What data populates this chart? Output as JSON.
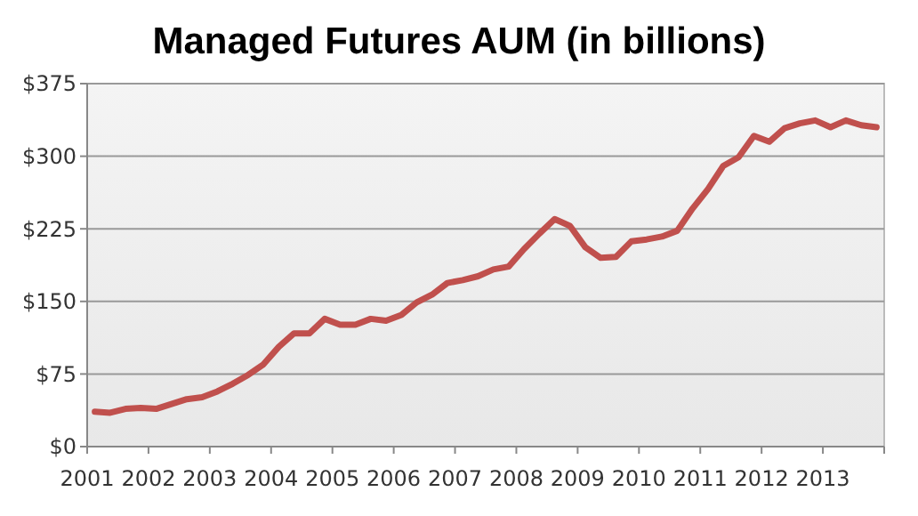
{
  "chart_data": {
    "type": "line",
    "title": "Managed Futures AUM (in billions)",
    "x": [
      2001.125,
      2001.375,
      2001.625,
      2001.875,
      2002.125,
      2002.375,
      2002.625,
      2002.875,
      2003.125,
      2003.375,
      2003.625,
      2003.875,
      2004.125,
      2004.375,
      2004.625,
      2004.875,
      2005.125,
      2005.375,
      2005.625,
      2005.875,
      2006.125,
      2006.375,
      2006.625,
      2006.875,
      2007.125,
      2007.375,
      2007.625,
      2007.875,
      2008.125,
      2008.375,
      2008.625,
      2008.875,
      2009.125,
      2009.375,
      2009.625,
      2009.875,
      2010.125,
      2010.375,
      2010.625,
      2010.875,
      2011.125,
      2011.375,
      2011.625,
      2011.875,
      2012.125,
      2012.375,
      2012.625,
      2012.875,
      2013.125,
      2013.375,
      2013.625,
      2013.875
    ],
    "series": [
      {
        "color": "#c0504d",
        "values": [
          36,
          35,
          39,
          40,
          39,
          44,
          49,
          51,
          57,
          65,
          74,
          85,
          103,
          117,
          117,
          132,
          126,
          126,
          132,
          130,
          136,
          149,
          157,
          169,
          172,
          176,
          183,
          186,
          204,
          220,
          235,
          228,
          206,
          195,
          196,
          212,
          214,
          217,
          223,
          246,
          266,
          290,
          299,
          321,
          315,
          329,
          334,
          337,
          330,
          337,
          332,
          330
        ]
      }
    ],
    "xlim": [
      2001,
      2014
    ],
    "xticks": [
      2001,
      2002,
      2003,
      2004,
      2005,
      2006,
      2007,
      2008,
      2009,
      2010,
      2011,
      2012,
      2013,
      {
        "value": 2014,
        "label": null
      }
    ],
    "ylim": [
      0,
      375
    ],
    "yticks": [
      {
        "value": 0,
        "label": "$0"
      },
      {
        "value": 75,
        "label": "$75"
      },
      {
        "value": 150,
        "label": "$150"
      },
      {
        "value": 225,
        "label": "$225"
      },
      {
        "value": 300,
        "label": "$300"
      },
      {
        "value": 375,
        "label": "$375"
      }
    ],
    "grid": "y",
    "marker": "none",
    "line_style": "solid"
  }
}
